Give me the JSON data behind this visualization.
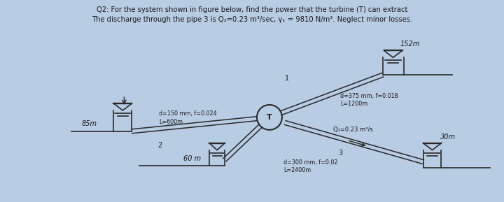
{
  "bg_color": "#b8cce4",
  "line_color": "#2a2a2a",
  "text_color": "#1a1a1a",
  "title1": "Q2: For the system shown in figure below, find the power that the turbine (T) can extract",
  "title2": "The discharge through the pipe 3 is Q₃=0.23 m³/sec, γₖ = 9810 N/m³. Neglect minor losses.",
  "label_85m": "85m",
  "label_152m": "152m",
  "label_60m": "60 m",
  "label_30m": "30m",
  "label_pipe1": "d=375 mm, f=0.018\nL=1200m",
  "label_pipe2": "d=150 mm, f=0.024\nL=600m",
  "label_pipe3": "d=300 mm, f=0.02\nL=2400m",
  "label_Q3": "Q₃=0.23 m³/s",
  "label_T": "T",
  "label_1": "1",
  "label_2": "2",
  "label_3": "3"
}
